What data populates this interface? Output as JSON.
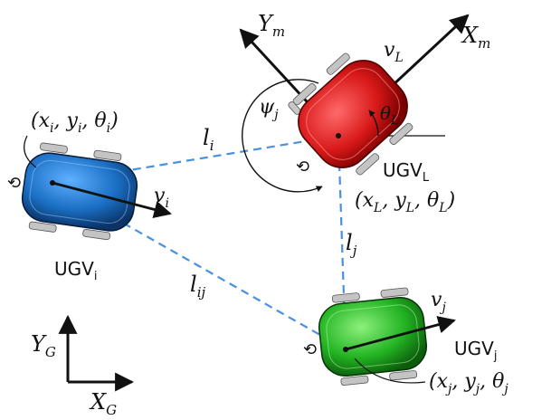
{
  "colors": {
    "leader_body": "#d81818",
    "follower_i_body": "#1a6fc4",
    "follower_j_body": "#22b322",
    "link_line": "#4a90e2",
    "wheel": "#b9b9b9",
    "arrow": "#111111"
  },
  "frames": {
    "global": {
      "y_axis": "Y",
      "y_sub": "G",
      "x_axis": "X",
      "x_sub": "G"
    },
    "moving": {
      "y_axis": "Y",
      "y_sub": "m",
      "x_axis": "X",
      "x_sub": "m"
    }
  },
  "leader": {
    "name": "UGV",
    "name_sub": "L",
    "velocity": "v",
    "velocity_sub": "L",
    "heading": "θ",
    "heading_sub": "L",
    "bearing": "ψ",
    "bearing_sub": "j",
    "pose": {
      "x": "x",
      "x_sub": "L",
      "y": "y",
      "y_sub": "L",
      "t": "θ",
      "t_sub": "L"
    }
  },
  "follower_i": {
    "name": "UGV",
    "name_sub": "i",
    "velocity": "v",
    "velocity_sub": "i",
    "pose": {
      "x": "x",
      "x_sub": "i",
      "y": "y",
      "y_sub": "i",
      "t": "θ",
      "t_sub": "i"
    }
  },
  "follower_j": {
    "name": "UGV",
    "name_sub": "j",
    "velocity": "v",
    "velocity_sub": "j",
    "pose": {
      "x": "x",
      "x_sub": "j",
      "y": "y",
      "y_sub": "j",
      "t": "θ",
      "t_sub": "j"
    }
  },
  "links": {
    "li": {
      "base": "l",
      "sub": "i"
    },
    "lj": {
      "base": "l",
      "sub": "j"
    },
    "lij": {
      "base": "l",
      "sub": "ij"
    }
  },
  "punct": {
    "open": "(",
    "comma": ",",
    "close": ")"
  }
}
